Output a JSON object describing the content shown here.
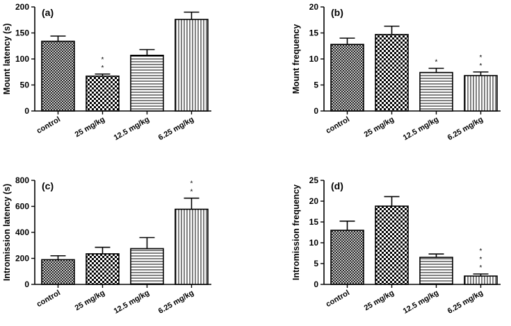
{
  "chart_data": [
    {
      "type": "bar",
      "panel_label": "(a)",
      "ylabel": "Mount latency (s)",
      "categories": [
        "control",
        "25 mg/kg",
        "12.5 mg/kg",
        "6.25 mg/kg"
      ],
      "values": [
        134,
        67,
        107,
        176
      ],
      "errors": [
        10,
        4,
        11,
        14
      ],
      "significance": [
        "",
        "**",
        "",
        ""
      ],
      "patterns": [
        "crosshatch",
        "checker",
        "horizontal",
        "vertical"
      ],
      "ylim": [
        0,
        200
      ],
      "yticks": [
        0,
        50,
        100,
        150,
        200
      ]
    },
    {
      "type": "bar",
      "panel_label": "(b)",
      "ylabel": "Mount frequency",
      "categories": [
        "control",
        "25 mg/kg",
        "12.5 mg/kg",
        "6.25 mg/kg"
      ],
      "values": [
        12.8,
        14.7,
        7.4,
        6.8
      ],
      "errors": [
        1.2,
        1.6,
        0.8,
        0.7
      ],
      "significance": [
        "",
        "",
        "*",
        "**"
      ],
      "patterns": [
        "crosshatch",
        "checker",
        "horizontal",
        "vertical"
      ],
      "ylim": [
        0,
        20
      ],
      "yticks": [
        0,
        5,
        10,
        15,
        20
      ]
    },
    {
      "type": "bar",
      "panel_label": "(c)",
      "ylabel": "Intromission latency (s)",
      "categories": [
        "control",
        "25 mg/kg",
        "12.5 mg/kg",
        "6.25 mg/kg"
      ],
      "values": [
        190,
        235,
        275,
        578
      ],
      "errors": [
        30,
        50,
        85,
        85
      ],
      "significance": [
        "",
        "",
        "",
        "**"
      ],
      "patterns": [
        "crosshatch",
        "checker",
        "horizontal",
        "vertical"
      ],
      "ylim": [
        0,
        800
      ],
      "yticks": [
        0,
        200,
        400,
        600,
        800
      ]
    },
    {
      "type": "bar",
      "panel_label": "(d)",
      "ylabel": "Intromission frequency",
      "categories": [
        "control",
        "25 mg/kg",
        "12.5 mg/kg",
        "6.25 mg/kg"
      ],
      "values": [
        13,
        18.8,
        6.5,
        2
      ],
      "errors": [
        2.2,
        2.3,
        0.8,
        0.5
      ],
      "significance": [
        "",
        "",
        "",
        "***"
      ],
      "patterns": [
        "crosshatch",
        "checker",
        "horizontal",
        "vertical"
      ],
      "ylim": [
        0,
        25
      ],
      "yticks": [
        0,
        5,
        10,
        15,
        20,
        25
      ]
    }
  ]
}
